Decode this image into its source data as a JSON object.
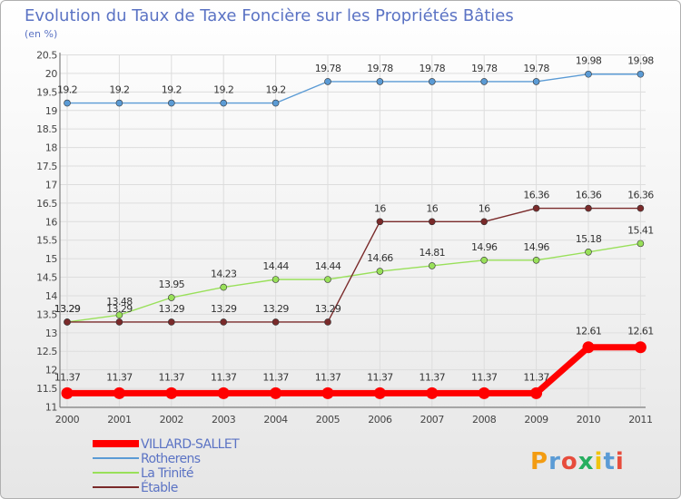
{
  "chart_data": {
    "type": "line",
    "title": "Evolution du Taux de Taxe Foncière sur les Propriétés Bâties",
    "subtitle": "(en %)",
    "x": [
      "2000",
      "2001",
      "2002",
      "2003",
      "2004",
      "2005",
      "2006",
      "2007",
      "2008",
      "2009",
      "2010",
      "2011"
    ],
    "ylim": [
      11,
      20.5
    ],
    "yticks": [
      "11",
      "11.5",
      "12",
      "12.5",
      "13",
      "13.5",
      "14",
      "14.5",
      "15",
      "15.5",
      "16",
      "16.5",
      "17",
      "17.5",
      "18",
      "18.5",
      "19",
      "19.5",
      "20",
      "20.5"
    ],
    "legend_position": "bottom-left",
    "series": [
      {
        "name": "VILLARD-SALLET",
        "color": "#ff0000",
        "values": [
          11.37,
          11.37,
          11.37,
          11.37,
          11.37,
          11.37,
          11.37,
          11.37,
          11.37,
          11.37,
          12.61,
          12.61
        ],
        "labels": [
          "11.37",
          "11.37",
          "11.37",
          "11.37",
          "11.37",
          "11.37",
          "11.37",
          "11.37",
          "11.37",
          "11.37",
          "12.61",
          "12.61"
        ]
      },
      {
        "name": "Rotherens",
        "color": "#5b9bd5",
        "values": [
          19.2,
          19.2,
          19.2,
          19.2,
          19.2,
          19.78,
          19.78,
          19.78,
          19.78,
          19.78,
          19.98,
          19.98
        ],
        "labels": [
          "19.2",
          "19.2",
          "19.2",
          "19.2",
          "19.2",
          "19.78",
          "19.78",
          "19.78",
          "19.78",
          "19.78",
          "19.98",
          "19.98"
        ]
      },
      {
        "name": "La Trinité",
        "color": "#99e05a",
        "values": [
          13.29,
          13.48,
          13.95,
          14.23,
          14.44,
          14.44,
          14.66,
          14.81,
          14.96,
          14.96,
          15.18,
          15.41
        ],
        "labels": [
          "13.29",
          "13.48",
          "13.95",
          "14.23",
          "14.44",
          "14.44",
          "14.66",
          "14.81",
          "14.96",
          "14.96",
          "15.18",
          "15.41"
        ]
      },
      {
        "name": "Étable",
        "color": "#7a2a2a",
        "values": [
          13.29,
          13.29,
          13.29,
          13.29,
          13.29,
          13.29,
          16,
          16,
          16,
          16.36,
          16.36,
          16.36
        ],
        "labels": [
          "13.29",
          "13.29",
          "13.29",
          "13.29",
          "13.29",
          "13.29",
          "16",
          "16",
          "16",
          "16.36",
          "16.36",
          "16.36"
        ]
      }
    ]
  },
  "branding": {
    "logo_text": "Proxiti"
  }
}
